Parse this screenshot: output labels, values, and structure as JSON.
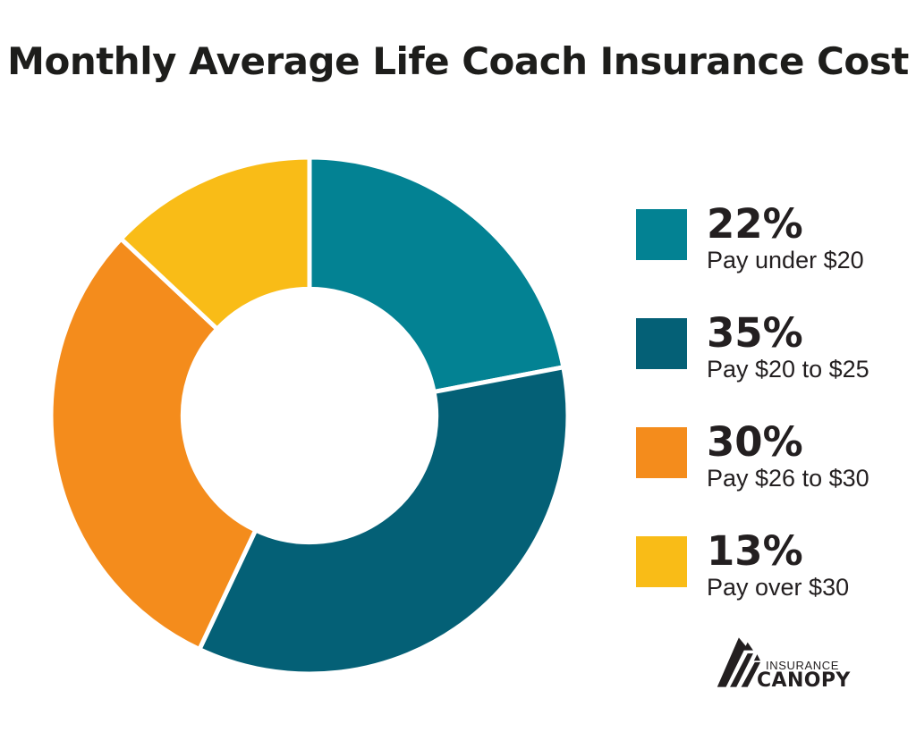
{
  "title": "Monthly Average Life Coach Insurance Cost",
  "chart_data": {
    "type": "pie",
    "subtype": "donut",
    "start_angle_deg_from_top": 0,
    "direction": "clockwise",
    "inner_radius_ratio": 0.49,
    "separator_color": "#ffffff",
    "items": [
      {
        "pct_label": "22%",
        "value": 22,
        "label": "Pay under $20",
        "color": "#038293"
      },
      {
        "pct_label": "35%",
        "value": 35,
        "label": "Pay $20 to $25",
        "color": "#046076"
      },
      {
        "pct_label": "30%",
        "value": 30,
        "label": "Pay $26 to $30",
        "color": "#F48C1C"
      },
      {
        "pct_label": "13%",
        "value": 13,
        "label": "Pay over $30",
        "color": "#F9BC17"
      }
    ],
    "legend_position": "right",
    "title": "Monthly Average Life Coach Insurance Cost"
  },
  "logo": {
    "line1": "INSURANCE",
    "line2": "CANOPY"
  }
}
